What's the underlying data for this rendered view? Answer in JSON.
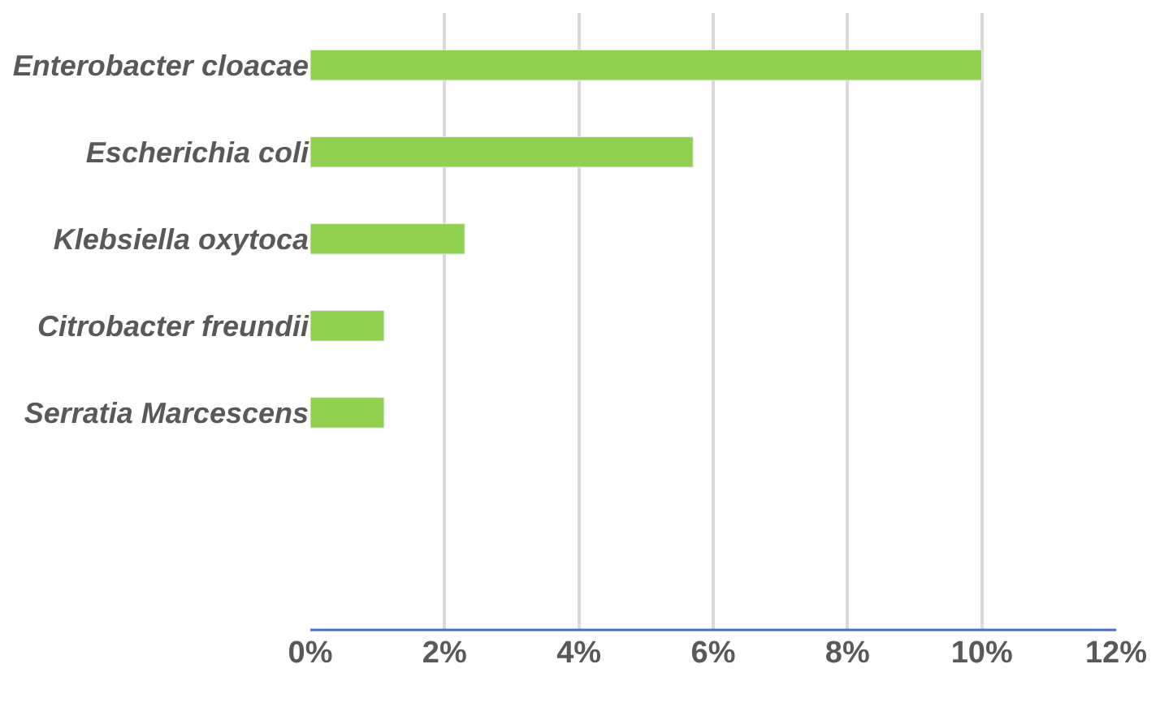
{
  "chart_data": {
    "type": "bar",
    "orientation": "horizontal",
    "categories": [
      "Enterobacter cloacae",
      "Escherichia coli",
      "Klebsiella oxytoca",
      "Citrobacter freundii",
      "Serratia Marcescens",
      null,
      null
    ],
    "values": [
      10,
      5.7,
      2.3,
      1.1,
      1.1,
      null,
      null
    ],
    "color": "#92d050",
    "xlim": [
      0,
      12
    ],
    "xticks": [
      {
        "value": 0,
        "label": "0%"
      },
      {
        "value": 2,
        "label": "2%"
      },
      {
        "value": 4,
        "label": "4%"
      },
      {
        "value": 6,
        "label": "6%"
      },
      {
        "value": 8,
        "label": "8%"
      },
      {
        "value": 10,
        "label": "10%"
      },
      {
        "value": 12,
        "label": "12%"
      }
    ],
    "grid": "x"
  }
}
